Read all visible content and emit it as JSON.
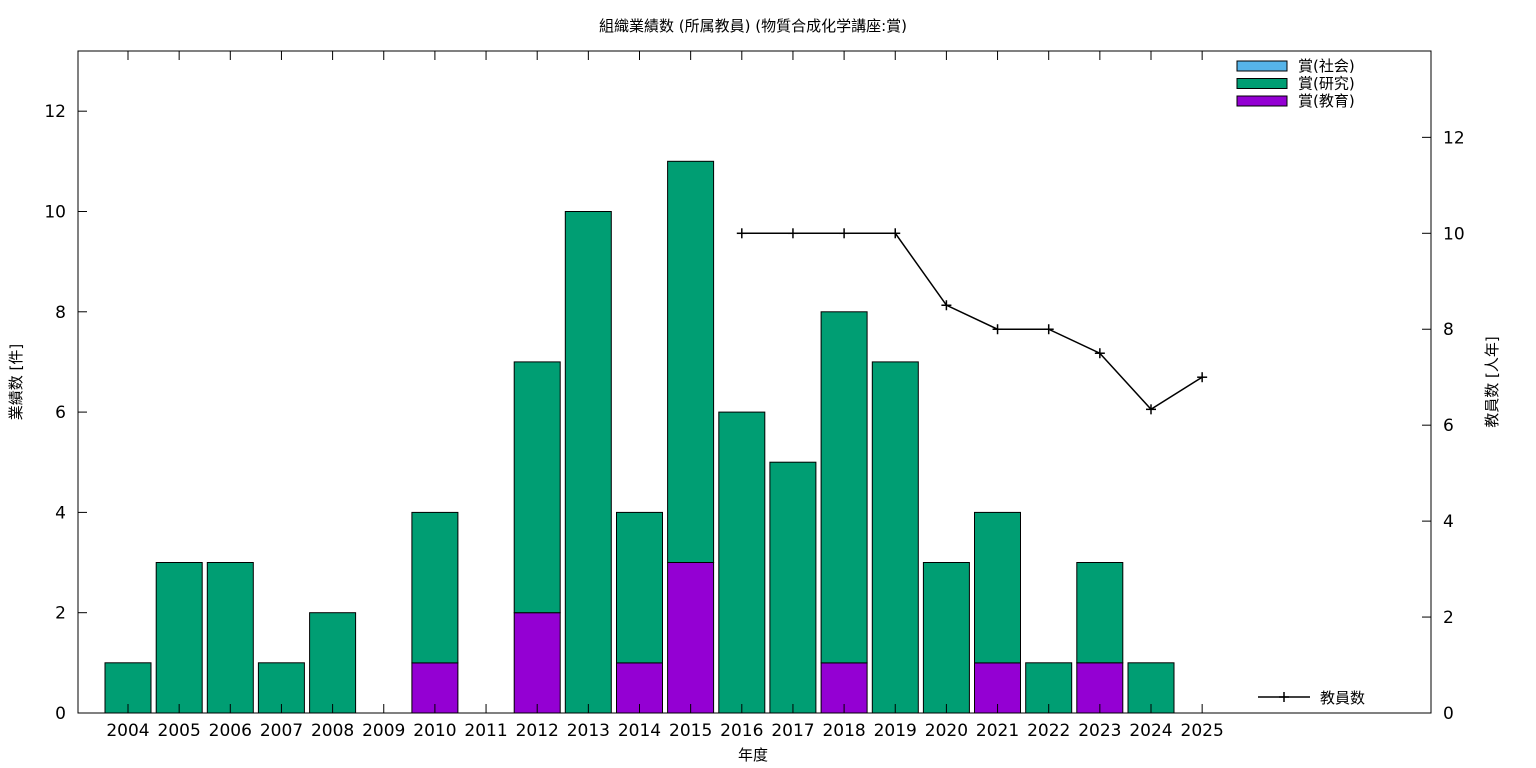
{
  "chart_data": {
    "type": "bar",
    "title": "組織業績数 (所属教員) (物質合成化学講座:賞)",
    "xlabel": "年度",
    "ylabel": "業績数 [件]",
    "y2label": "教員数 [人年]",
    "ylim": [
      0,
      13.2
    ],
    "y2lim": [
      0,
      13.8
    ],
    "yticks": [
      0,
      2,
      4,
      6,
      8,
      10,
      12
    ],
    "y2ticks": [
      0,
      2,
      4,
      6,
      8,
      10,
      12
    ],
    "stacked": true,
    "legend_position": "top-right",
    "categories": [
      "2004",
      "2005",
      "2006",
      "2007",
      "2008",
      "2009",
      "2010",
      "2011",
      "2012",
      "2013",
      "2014",
      "2015",
      "2016",
      "2017",
      "2018",
      "2019",
      "2020",
      "2021",
      "2022",
      "2023",
      "2024",
      "2025"
    ],
    "series": [
      {
        "name": "賞(社会)",
        "color": "#56b4e9",
        "values": [
          0,
          0,
          0,
          0,
          0,
          0,
          0,
          0,
          0,
          0,
          0,
          0,
          0,
          0,
          0,
          0,
          0,
          0,
          0,
          0,
          0,
          0
        ]
      },
      {
        "name": "賞(研究)",
        "color": "#009e73",
        "values": [
          1,
          3,
          3,
          1,
          2,
          0,
          3,
          0,
          5,
          10,
          3,
          8,
          6,
          5,
          7,
          7,
          3,
          3,
          1,
          2,
          1,
          0
        ]
      },
      {
        "name": "賞(教育)",
        "color": "#9400d3",
        "values": [
          0,
          0,
          0,
          0,
          0,
          0,
          1,
          0,
          2,
          0,
          1,
          3,
          0,
          0,
          1,
          0,
          0,
          1,
          0,
          1,
          0,
          0
        ]
      }
    ],
    "stack_order_bottom_to_top": [
      "賞(教育)",
      "賞(研究)",
      "賞(社会)"
    ],
    "line_series": {
      "name": "教員数",
      "color": "#000000",
      "axis": "right",
      "x": [
        "2016",
        "2017",
        "2018",
        "2019",
        "2020",
        "2021",
        "2022",
        "2023",
        "2024",
        "2025"
      ],
      "values": [
        10,
        10,
        10,
        10,
        8.5,
        8,
        8,
        7.5,
        6.33,
        7
      ]
    }
  }
}
